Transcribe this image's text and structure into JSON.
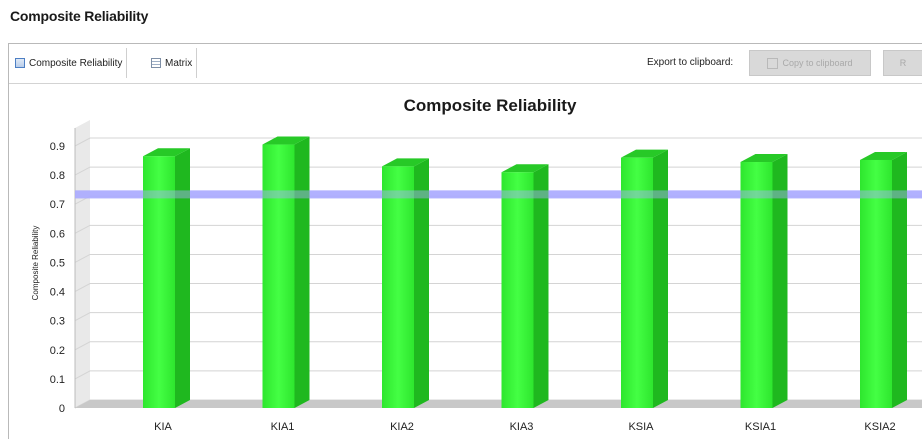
{
  "page": {
    "heading": "Composite Reliability"
  },
  "tabs": [
    {
      "label": "Composite Reliability",
      "icon": "chart-icon"
    },
    {
      "label": "Matrix",
      "icon": "matrix-icon"
    }
  ],
  "export": {
    "label": "Export to clipboard:",
    "copy_button": "Copy to clipboard",
    "extra_button": "R"
  },
  "colors": {
    "bar": "#33ee33",
    "threshold_line": "#aaaaff",
    "floor": "#c8c8c8"
  },
  "chart_data": {
    "type": "bar",
    "title": "Composite Reliability",
    "ylabel": "Composite Reliability",
    "xlabel": "",
    "categories": [
      "KIA",
      "KIA1",
      "KIA2",
      "KIA3",
      "KSIA",
      "KSIA1",
      "KSIA2"
    ],
    "values": [
      0.865,
      0.905,
      0.83,
      0.81,
      0.86,
      0.845,
      0.852
    ],
    "ylim": [
      0,
      0.9
    ],
    "yticks": [
      0,
      0.1,
      0.2,
      0.3,
      0.4,
      0.5,
      0.6,
      0.7,
      0.8,
      0.9
    ],
    "threshold": 0.72,
    "grid": true,
    "legend": "none"
  }
}
